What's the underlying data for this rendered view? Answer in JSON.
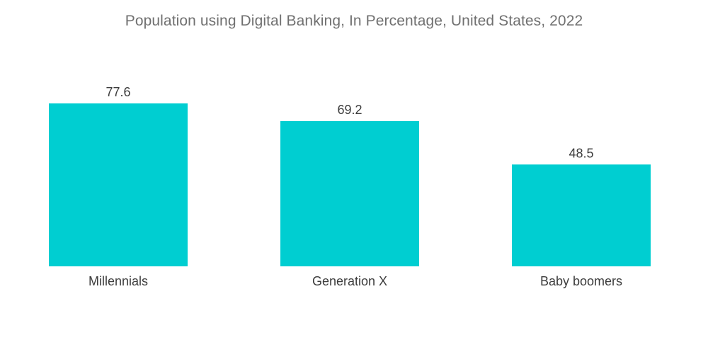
{
  "chart_data": {
    "type": "bar",
    "title": "Population using Digital Banking, In Percentage, United States, 2022",
    "categories": [
      "Millennials",
      "Generation X",
      "Baby boomers"
    ],
    "values": [
      77.6,
      69.2,
      48.5
    ],
    "value_labels": [
      "77.6",
      "69.2",
      "48.5"
    ],
    "xlabel": "",
    "ylabel": "",
    "ylim": [
      0,
      77.6
    ],
    "grid": false,
    "legend": "none",
    "bar_color": "#00ced1"
  }
}
